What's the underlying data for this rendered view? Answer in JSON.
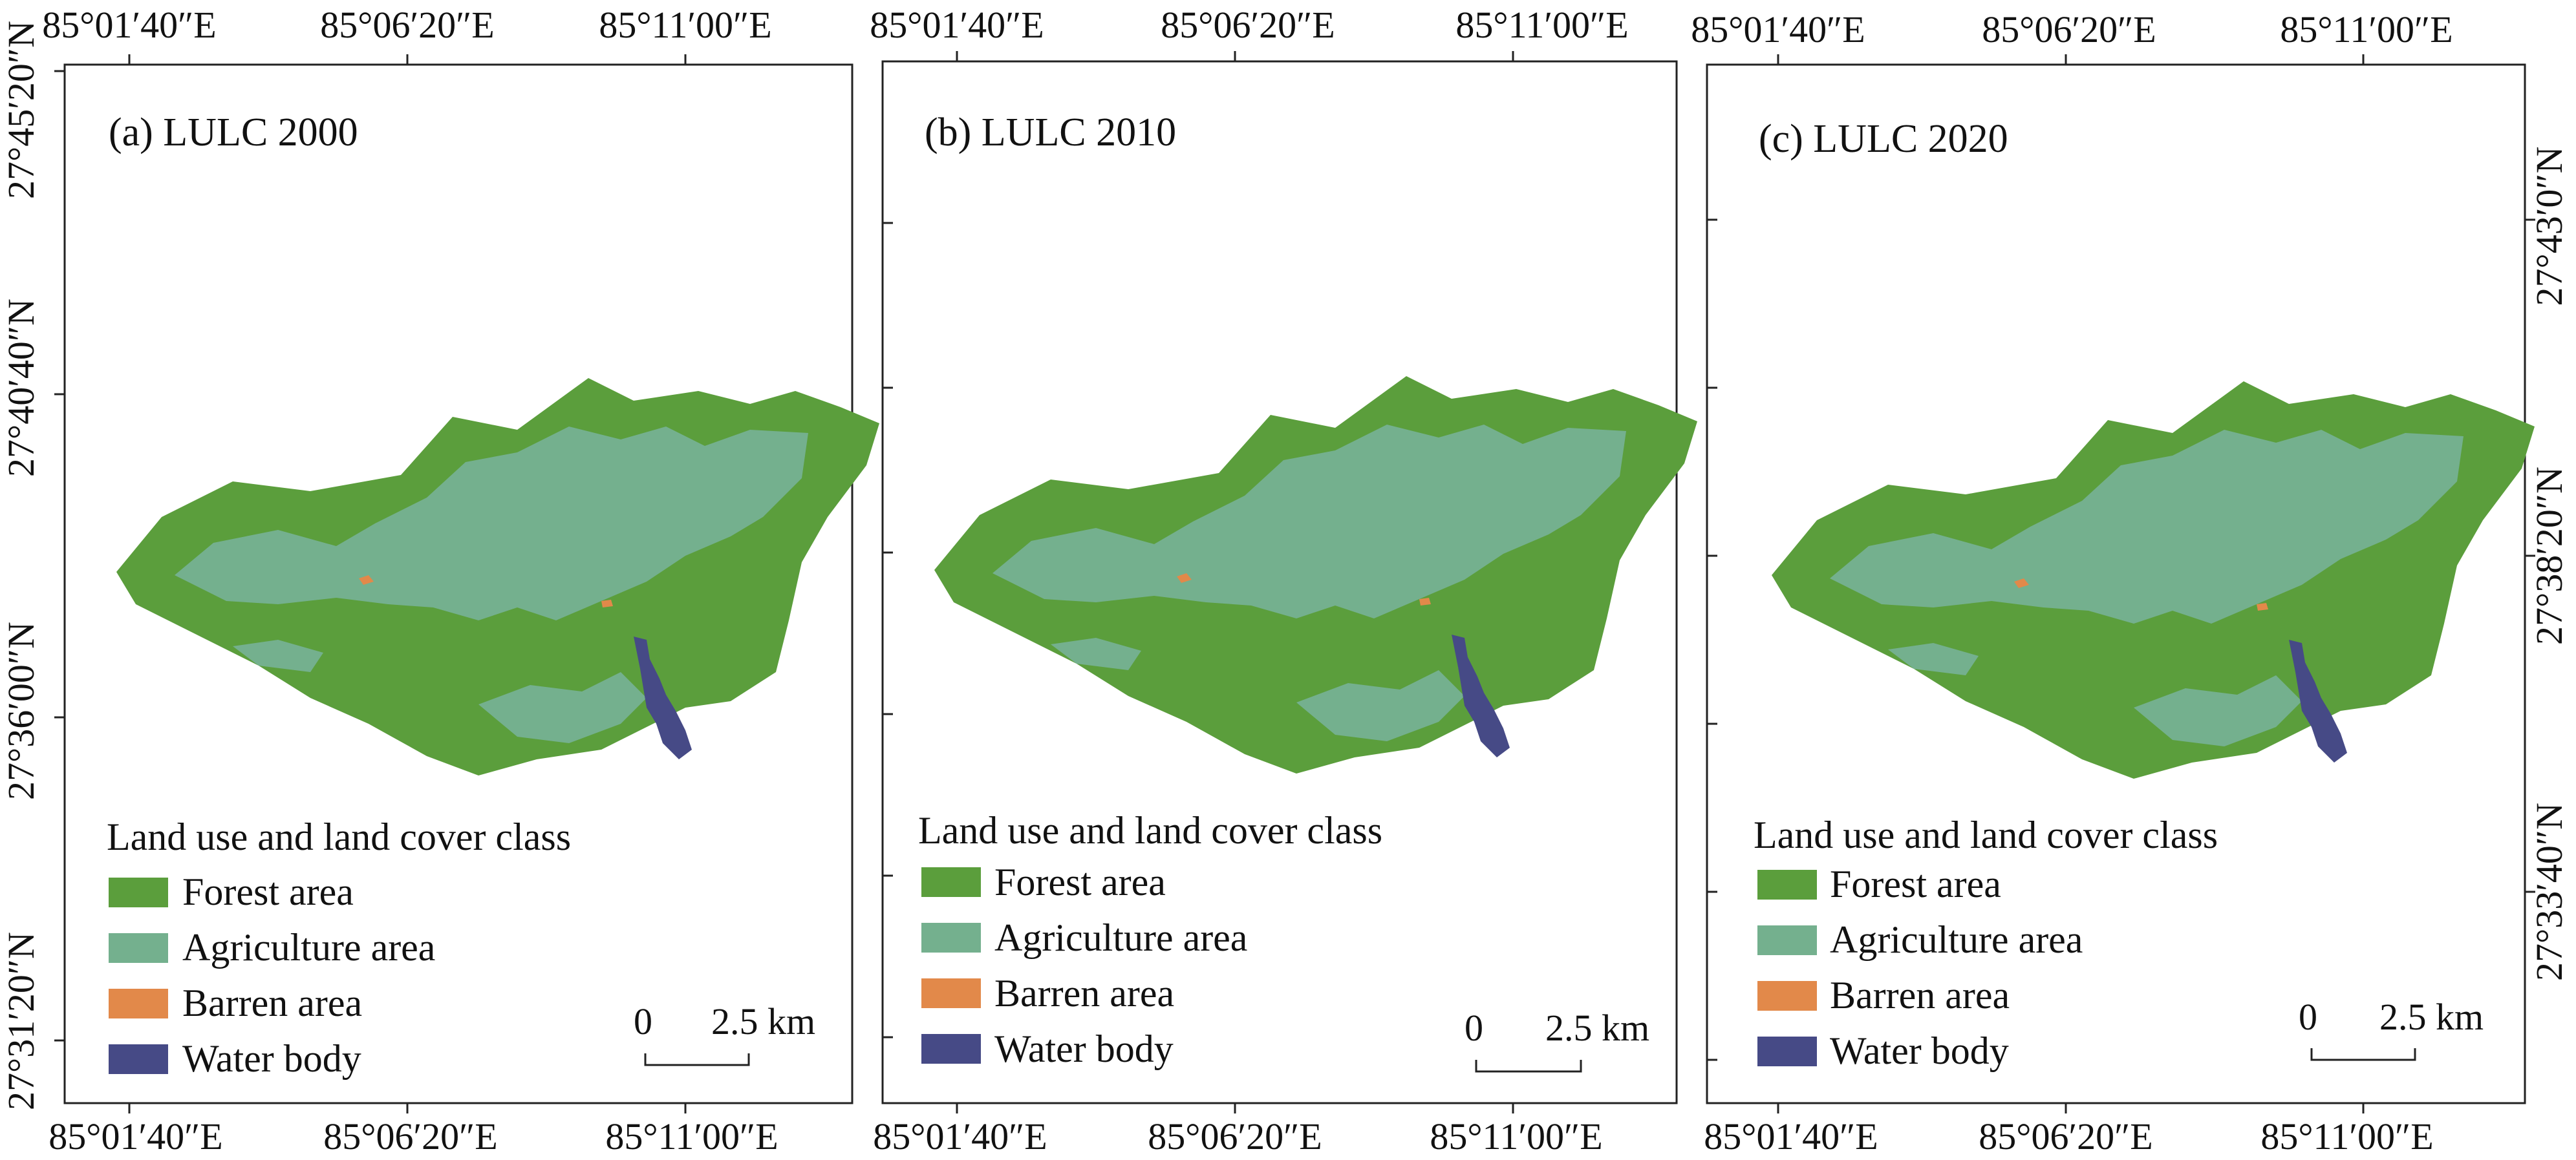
{
  "colors": {
    "forest": "#5B9E3C",
    "agriculture": "#74B08E",
    "barren": "#E2894A",
    "water": "#464A86"
  },
  "legend": {
    "title": "Land use and land cover class",
    "items": [
      {
        "label": "Forest area",
        "color": "#5B9E3C"
      },
      {
        "label": "Agriculture area",
        "color": "#74B08E"
      },
      {
        "label": "Barren area",
        "color": "#E2894A"
      },
      {
        "label": "Water body",
        "color": "#464A86"
      }
    ]
  },
  "scale_bar": {
    "zero": "0",
    "distance": "2.5 km"
  },
  "panels": [
    {
      "title": "(a) LULC 2000",
      "top_labels": [
        "85°01′40″E",
        "85°06′20″E",
        "85°11′00″E"
      ],
      "bottom_labels": [
        "85°01′40″E",
        "85°06′20″E",
        "85°11′00″E"
      ],
      "lat_labels": [
        "27°45′20″N",
        "27°40′40″N",
        "27°36′00″N",
        "27°31′20″N"
      ]
    },
    {
      "title": "(b) LULC 2010",
      "top_labels": [
        "85°01′40″E",
        "85°06′20″E",
        "85°11′00″E"
      ],
      "bottom_labels": [
        "85°01′40″E",
        "85°06′20″E",
        "85°11′00″E"
      ],
      "lat_labels": []
    },
    {
      "title": "(c) LULC 2020",
      "top_labels": [
        "85°01′40″E",
        "85°06′20″E",
        "85°11′00″E"
      ],
      "bottom_labels": [
        "85°01′40″E",
        "85°06′20″E",
        "85°11′00″E"
      ],
      "lat_labels": [
        "27°43′0″N",
        "27°38′20″N",
        "27°33′40″N"
      ]
    }
  ]
}
